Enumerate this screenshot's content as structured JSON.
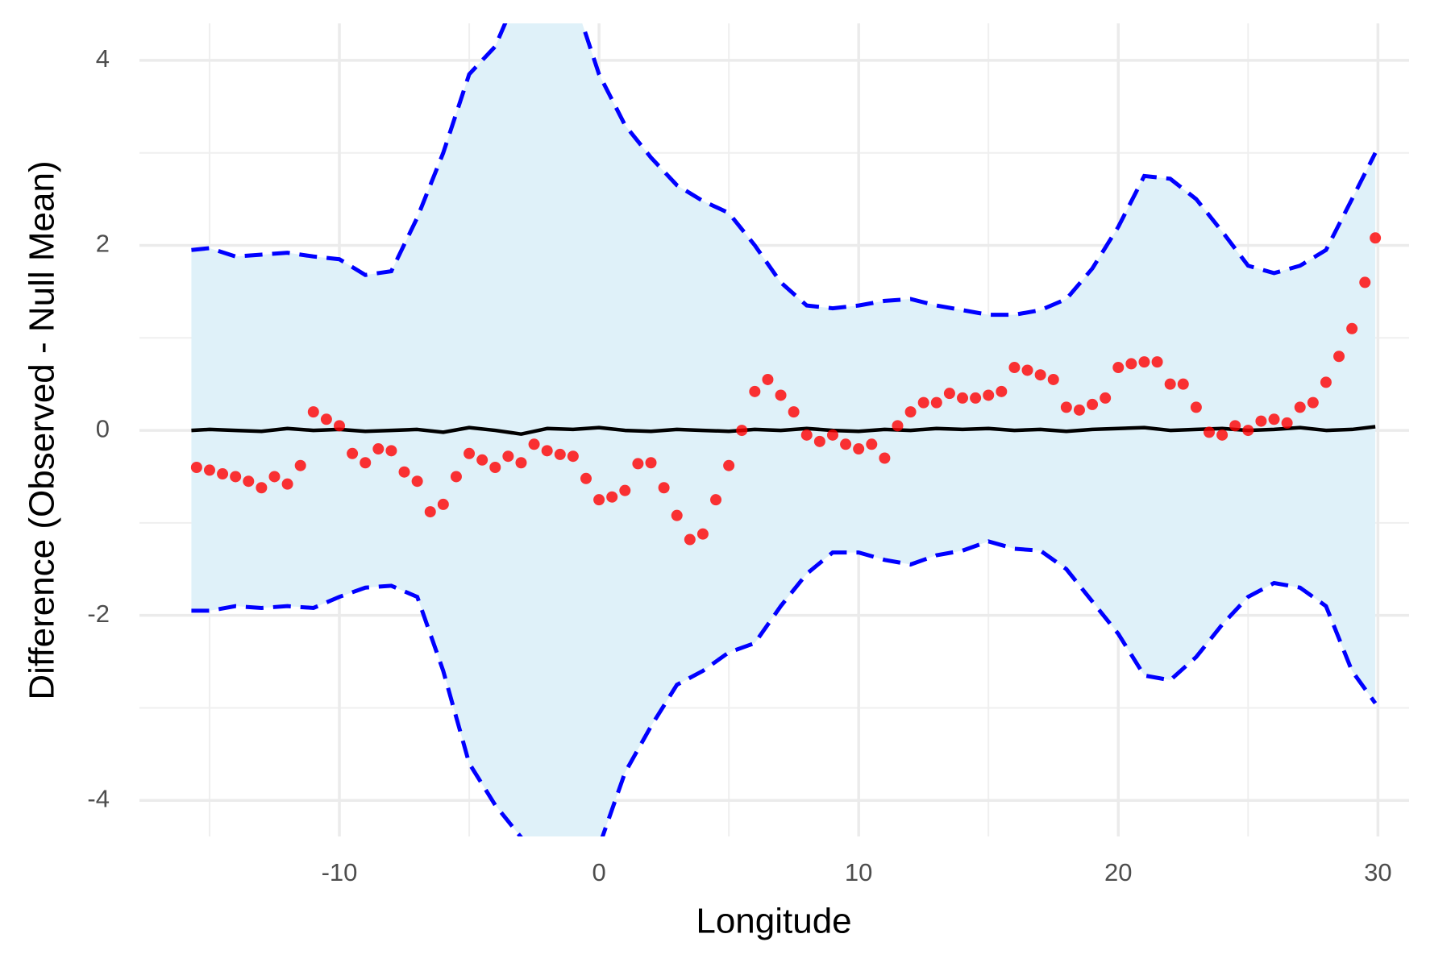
{
  "chart_data": {
    "type": "combo",
    "x_label": "Longitude",
    "y_label": "Difference (Observed - Null Mean)",
    "xlim": [
      -17.7,
      31.2
    ],
    "ylim": [
      -4.39,
      4.4
    ],
    "xticks": [
      -10,
      0,
      10,
      20,
      30
    ],
    "yticks": [
      -4,
      -2,
      0,
      2,
      4
    ],
    "x_minor_ticks": [
      -15,
      -5,
      5,
      15,
      25
    ],
    "y_minor_ticks": [
      -3,
      -1,
      1,
      3
    ],
    "grid": true,
    "band": {
      "fill": "#dff1f9",
      "line_color": "#0000ff",
      "x": [
        -15.7,
        -15,
        -14,
        -13,
        -12,
        -11,
        -10,
        -9,
        -8,
        -7,
        -6,
        -5,
        -4,
        -3,
        -2,
        -1,
        0,
        1,
        2,
        3,
        4,
        5,
        6,
        7,
        8,
        9,
        10,
        11,
        12,
        13,
        14,
        15,
        16,
        17,
        18,
        19,
        20,
        21,
        22,
        23,
        24,
        25,
        26,
        27,
        28,
        29,
        29.9
      ],
      "upper": [
        1.95,
        1.97,
        1.88,
        1.9,
        1.92,
        1.88,
        1.85,
        1.68,
        1.72,
        2.3,
        3.0,
        3.85,
        4.15,
        4.8,
        5.0,
        4.7,
        3.85,
        3.3,
        2.95,
        2.65,
        2.48,
        2.35,
        2.0,
        1.6,
        1.35,
        1.32,
        1.35,
        1.4,
        1.42,
        1.35,
        1.3,
        1.25,
        1.25,
        1.3,
        1.42,
        1.75,
        2.2,
        2.75,
        2.72,
        2.5,
        2.15,
        1.78,
        1.7,
        1.78,
        1.95,
        2.5,
        3.0
      ],
      "lower": [
        -1.95,
        -1.95,
        -1.9,
        -1.92,
        -1.9,
        -1.92,
        -1.8,
        -1.7,
        -1.68,
        -1.8,
        -2.6,
        -3.6,
        -4.05,
        -4.4,
        -4.8,
        -5.0,
        -4.5,
        -3.7,
        -3.2,
        -2.75,
        -2.6,
        -2.4,
        -2.3,
        -1.9,
        -1.55,
        -1.32,
        -1.32,
        -1.4,
        -1.45,
        -1.35,
        -1.3,
        -1.2,
        -1.28,
        -1.3,
        -1.5,
        -1.85,
        -2.2,
        -2.65,
        -2.7,
        -2.45,
        -2.1,
        -1.8,
        -1.65,
        -1.7,
        -1.9,
        -2.6,
        -2.95
      ]
    },
    "series": [
      {
        "type": "line",
        "color": "#000000",
        "x": [
          -15.7,
          -15,
          -14,
          -13,
          -12,
          -11,
          -10,
          -9,
          -8,
          -7,
          -6,
          -5,
          -4,
          -3,
          -2,
          -1,
          0,
          1,
          2,
          3,
          4,
          5,
          6,
          7,
          8,
          9,
          10,
          11,
          12,
          13,
          14,
          15,
          16,
          17,
          18,
          19,
          20,
          21,
          22,
          23,
          24,
          25,
          26,
          27,
          28,
          29,
          29.9
        ],
        "values": [
          0,
          0.01,
          0,
          -0.01,
          0.02,
          0,
          0.01,
          -0.01,
          0,
          0.01,
          -0.02,
          0.03,
          0,
          -0.04,
          0.02,
          0.01,
          0.03,
          0,
          -0.01,
          0.01,
          0,
          -0.01,
          0.01,
          0,
          0.02,
          0,
          -0.01,
          0.01,
          0,
          0.02,
          0.01,
          0.02,
          0,
          0.01,
          -0.01,
          0.01,
          0.02,
          0.03,
          0,
          0.01,
          0.02,
          0,
          0.01,
          0.03,
          0,
          0.01,
          0.04
        ]
      },
      {
        "type": "scatter",
        "color": "#ff0000",
        "x": [
          -15.5,
          -15,
          -14.5,
          -14,
          -13.5,
          -13,
          -12.5,
          -12,
          -11.5,
          -11,
          -10.5,
          -10,
          -9.5,
          -9,
          -8.5,
          -8,
          -7.5,
          -7,
          -6.5,
          -6,
          -5.5,
          -5,
          -4.5,
          -4,
          -3.5,
          -3,
          -2.5,
          -2,
          -1.5,
          -1,
          -0.5,
          0,
          0.5,
          1,
          1.5,
          2,
          2.5,
          3,
          3.5,
          4,
          4.5,
          5,
          5.5,
          6,
          6.5,
          7,
          7.5,
          8,
          8.5,
          9,
          9.5,
          10,
          10.5,
          11,
          11.5,
          12,
          12.5,
          13,
          13.5,
          14,
          14.5,
          15,
          15.5,
          16,
          16.5,
          17,
          17.5,
          18,
          18.5,
          19,
          19.5,
          20,
          20.5,
          21,
          21.5,
          22,
          22.5,
          23,
          23.5,
          24,
          24.5,
          25,
          25.5,
          26,
          26.5,
          27,
          27.5,
          28,
          28.5,
          29,
          29.5,
          29.9
        ],
        "values": [
          -0.4,
          -0.43,
          -0.47,
          -0.5,
          -0.55,
          -0.62,
          -0.5,
          -0.58,
          -0.38,
          0.2,
          0.12,
          0.05,
          -0.25,
          -0.35,
          -0.2,
          -0.22,
          -0.45,
          -0.55,
          -0.88,
          -0.8,
          -0.5,
          -0.25,
          -0.32,
          -0.4,
          -0.28,
          -0.35,
          -0.15,
          -0.22,
          -0.26,
          -0.28,
          -0.52,
          -0.75,
          -0.72,
          -0.65,
          -0.36,
          -0.35,
          -0.62,
          -0.92,
          -1.18,
          -1.12,
          -0.75,
          -0.38,
          0.0,
          0.42,
          0.55,
          0.38,
          0.2,
          -0.05,
          -0.12,
          -0.05,
          -0.15,
          -0.2,
          -0.15,
          -0.3,
          0.05,
          0.2,
          0.3,
          0.3,
          0.4,
          0.35,
          0.35,
          0.38,
          0.42,
          0.68,
          0.65,
          0.6,
          0.55,
          0.25,
          0.22,
          0.28,
          0.35,
          0.68,
          0.72,
          0.74,
          0.74,
          0.5,
          0.5,
          0.25,
          -0.02,
          -0.05,
          0.05,
          0.0,
          0.1,
          0.12,
          0.08,
          0.25,
          0.3,
          0.52,
          0.8,
          1.1,
          1.6,
          2.08
        ]
      }
    ]
  }
}
